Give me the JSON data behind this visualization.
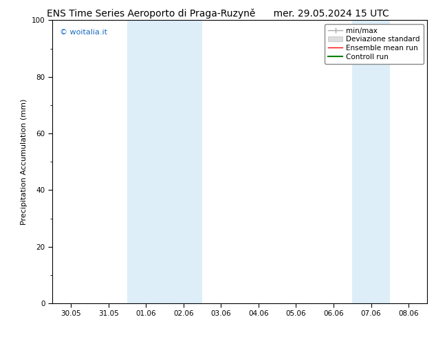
{
  "title_left": "ENS Time Series Aeroporto di Praga-Ruzyně",
  "title_right": "mer. 29.05.2024 15 UTC",
  "ylabel": "Precipitation Accumulation (mm)",
  "watermark": "© woitalia.it",
  "watermark_color": "#1a6bbf",
  "ylim": [
    0,
    100
  ],
  "yticks": [
    0,
    20,
    40,
    60,
    80,
    100
  ],
  "xtick_labels": [
    "30.05",
    "31.05",
    "01.06",
    "02.06",
    "03.06",
    "04.06",
    "05.06",
    "06.06",
    "07.06",
    "08.06"
  ],
  "xtick_positions": [
    0,
    1,
    2,
    3,
    4,
    5,
    6,
    7,
    8,
    9
  ],
  "xlim": [
    -0.5,
    9.5
  ],
  "background_color": "#ffffff",
  "plot_bg_color": "#ffffff",
  "shaded_bands": [
    {
      "x_start": 1.5,
      "x_end": 2.5,
      "color": "#ddeef9"
    },
    {
      "x_start": 2.5,
      "x_end": 3.5,
      "color": "#ddeef9"
    },
    {
      "x_start": 7.5,
      "x_end": 8.5,
      "color": "#ddeef9"
    }
  ],
  "legend_items": [
    {
      "label": "min/max",
      "color": "#aaaaaa",
      "linestyle": "-",
      "linewidth": 1.0
    },
    {
      "label": "Deviazione standard",
      "color": "#cccccc",
      "linestyle": "-",
      "linewidth": 8
    },
    {
      "label": "Ensemble mean run",
      "color": "#ff0000",
      "linestyle": "-",
      "linewidth": 1.0
    },
    {
      "label": "Controll run",
      "color": "#008000",
      "linestyle": "-",
      "linewidth": 1.5
    }
  ],
  "title_fontsize": 10,
  "axis_label_fontsize": 8,
  "tick_fontsize": 7.5,
  "legend_fontsize": 7.5,
  "watermark_fontsize": 8,
  "border_color": "#000000",
  "tick_color": "#000000"
}
